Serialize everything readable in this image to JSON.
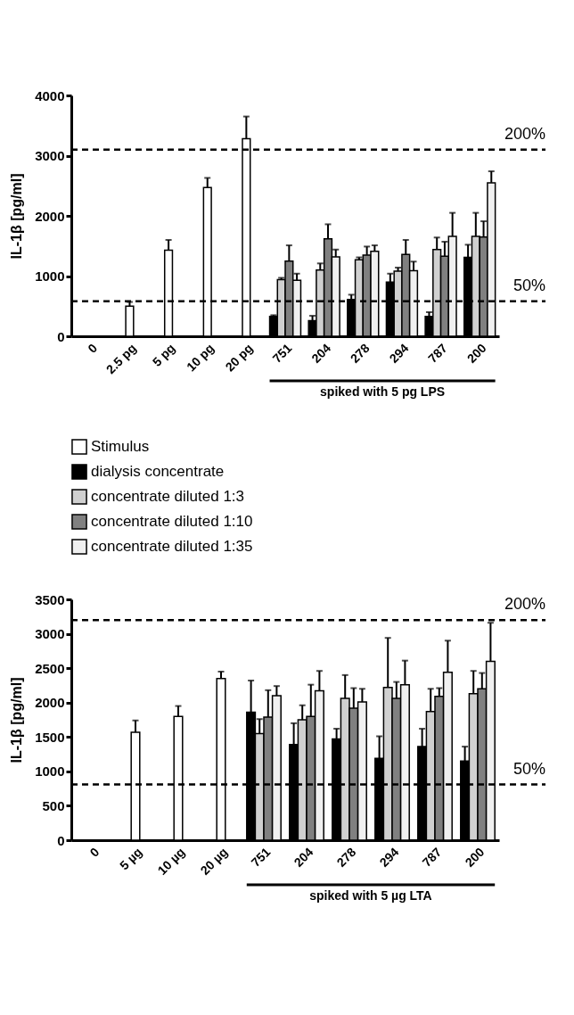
{
  "chart_data": [
    {
      "type": "bar",
      "ylabel": "IL-1β [pg/ml]",
      "categories": [
        "0",
        "2.5 pg",
        "5 pg",
        "10 pg",
        "20 pg",
        "751",
        "204",
        "278",
        "294",
        "787",
        "200"
      ],
      "ylim": [
        0,
        4000
      ],
      "yticks": [
        0,
        1000,
        2000,
        3000,
        4000
      ],
      "grid": false,
      "legend": "bottom",
      "series": [
        {
          "name": "Stimulus",
          "color": "#ffffff",
          "values": [
            null,
            500,
            1430,
            2470,
            3280,
            null,
            null,
            null,
            null,
            null,
            null
          ],
          "errors": [
            null,
            [
              500,
              570
            ],
            [
              1430,
              1600
            ],
            [
              2470,
              2630
            ],
            [
              3280,
              3650
            ],
            null,
            null,
            null,
            null,
            null,
            null
          ]
        },
        {
          "name": "dialysis concentrate",
          "color": "#000000",
          "values": [
            null,
            null,
            null,
            null,
            null,
            330,
            260,
            610,
            900,
            330,
            1310
          ],
          "errors": [
            null,
            null,
            null,
            null,
            null,
            [
              330,
              350
            ],
            [
              260,
              340
            ],
            [
              610,
              690
            ],
            [
              900,
              1040
            ],
            [
              330,
              400
            ],
            [
              1310,
              1520
            ]
          ]
        },
        {
          "name": "concentrate diluted 1:3",
          "color": "#d0d0d0",
          "values": [
            null,
            null,
            null,
            null,
            null,
            940,
            1100,
            1270,
            1080,
            1440,
            1660
          ],
          "errors": [
            null,
            null,
            null,
            null,
            null,
            [
              940,
              970
            ],
            [
              1100,
              1210
            ],
            [
              1270,
              1310
            ],
            [
              1080,
              1140
            ],
            [
              1440,
              1640
            ],
            [
              1660,
              2050
            ]
          ]
        },
        {
          "name": "concentrate diluted 1:10",
          "color": "#808080",
          "values": [
            null,
            null,
            null,
            null,
            null,
            1250,
            1620,
            1350,
            1360,
            1330,
            1650
          ],
          "errors": [
            null,
            null,
            null,
            null,
            null,
            [
              1250,
              1510
            ],
            [
              1620,
              1860
            ],
            [
              1350,
              1490
            ],
            [
              1360,
              1600
            ],
            [
              1330,
              1570
            ],
            [
              1650,
              1910
            ]
          ]
        },
        {
          "name": "concentrate diluted 1:35",
          "color": "#f0f0f0",
          "values": [
            null,
            null,
            null,
            null,
            null,
            930,
            1320,
            1410,
            1090,
            1660,
            2550
          ],
          "errors": [
            null,
            null,
            null,
            null,
            null,
            [
              930,
              1040
            ],
            [
              1320,
              1440
            ],
            [
              1410,
              1510
            ],
            [
              1090,
              1240
            ],
            [
              1660,
              2050
            ],
            [
              2550,
              2740
            ]
          ]
        }
      ],
      "ref_lines": [
        {
          "axis": "y",
          "value": 3100,
          "line_style": "dashed"
        },
        {
          "axis": "y",
          "value": 580,
          "line_style": "dashed"
        }
      ],
      "annotations": [
        "spiked with 5 pg LPS",
        {
          "text": "200%",
          "y": 3100
        },
        {
          "text": "50%",
          "y": 580
        }
      ]
    },
    {
      "type": "bar",
      "ylabel": "IL-1β [pg/ml]",
      "categories": [
        "0",
        "5 µg",
        "10 µg",
        "20 µg",
        "751",
        "204",
        "278",
        "294",
        "787",
        "200"
      ],
      "ylim": [
        0,
        3500
      ],
      "yticks": [
        0,
        500,
        1000,
        1500,
        2000,
        2500,
        3000,
        3500
      ],
      "grid": false,
      "series": [
        {
          "color": "#ffffff",
          "values": [
            null,
            1570,
            1800,
            2350,
            null,
            null,
            null,
            null,
            null,
            null
          ],
          "errors": [
            null,
            [
              1570,
              1740
            ],
            [
              1800,
              1950
            ],
            [
              2350,
              2450
            ],
            null,
            null,
            null,
            null,
            null,
            null
          ]
        },
        {
          "color": "#000000",
          "values": [
            null,
            null,
            null,
            null,
            1860,
            1390,
            1470,
            1190,
            1360,
            1150
          ],
          "errors": [
            null,
            null,
            null,
            null,
            [
              1860,
              2320
            ],
            [
              1390,
              1700
            ],
            [
              1470,
              1620
            ],
            [
              1190,
              1510
            ],
            [
              1360,
              1620
            ],
            [
              1150,
              1360
            ]
          ]
        },
        {
          "color": "#d0d0d0",
          "values": [
            null,
            null,
            null,
            null,
            1550,
            1750,
            2060,
            2220,
            1870,
            2130
          ],
          "errors": [
            null,
            null,
            null,
            null,
            [
              1550,
              1760
            ],
            [
              1750,
              1960
            ],
            [
              2060,
              2400
            ],
            [
              2220,
              2940
            ],
            [
              1870,
              2200
            ],
            [
              2130,
              2460
            ]
          ]
        },
        {
          "color": "#808080",
          "values": [
            null,
            null,
            null,
            null,
            1790,
            1800,
            1920,
            2060,
            2090,
            2200
          ],
          "errors": [
            null,
            null,
            null,
            null,
            [
              1790,
              2180
            ],
            [
              1800,
              2260
            ],
            [
              1920,
              2210
            ],
            [
              2060,
              2300
            ],
            [
              2090,
              2210
            ],
            [
              2200,
              2430
            ]
          ]
        },
        {
          "color": "#f0f0f0",
          "values": [
            null,
            null,
            null,
            null,
            2100,
            2170,
            2010,
            2260,
            2440,
            2600
          ],
          "errors": [
            null,
            null,
            null,
            null,
            [
              2100,
              2240
            ],
            [
              2170,
              2460
            ],
            [
              2010,
              2200
            ],
            [
              2260,
              2610
            ],
            [
              2440,
              2900
            ],
            [
              2600,
              3160
            ]
          ]
        }
      ],
      "ref_lines": [
        {
          "axis": "y",
          "value": 3200,
          "line_style": "dashed"
        },
        {
          "axis": "y",
          "value": 810,
          "line_style": "dashed"
        }
      ],
      "annotations": [
        "spiked with 5 µg LTA",
        {
          "text": "200%",
          "y": 3200
        },
        {
          "text": "50%",
          "y": 810
        }
      ]
    }
  ]
}
